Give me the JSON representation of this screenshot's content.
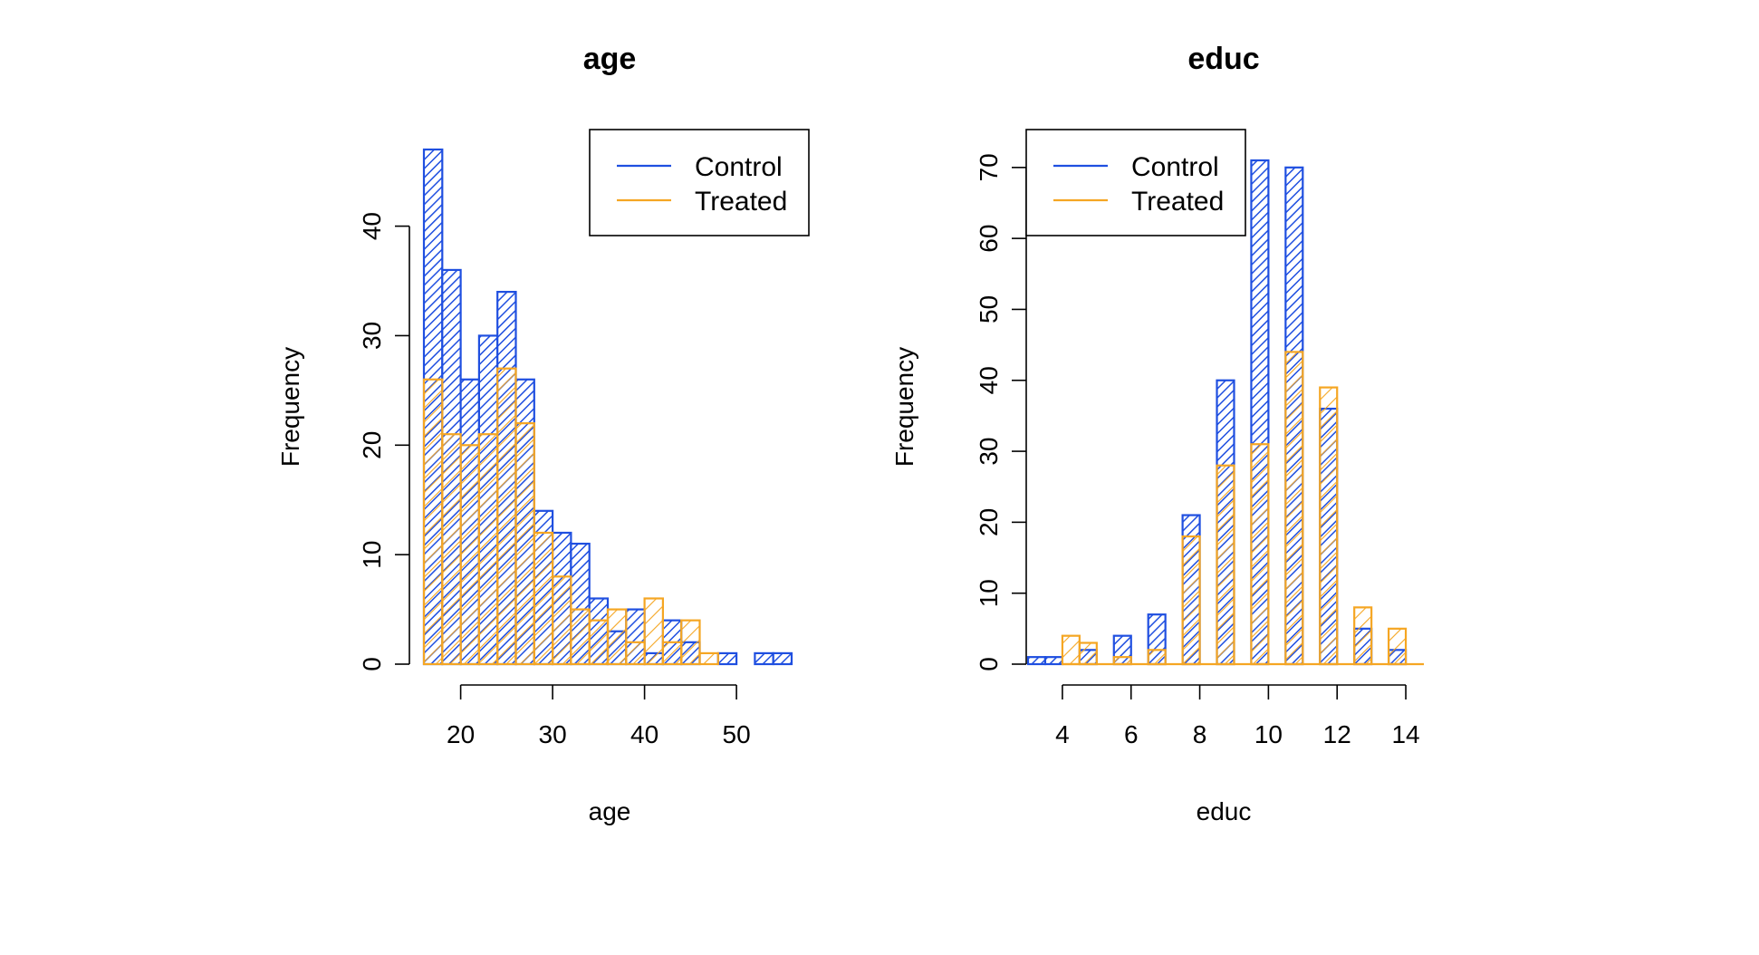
{
  "colors": {
    "control": "#1f4fe0",
    "treated": "#f5a623"
  },
  "chart_data": [
    {
      "type": "bar",
      "title": "age",
      "xlabel": "age",
      "ylabel": "Frequency",
      "xlim": [
        16,
        56
      ],
      "ylim": [
        0,
        47
      ],
      "bin_width": 2,
      "x_ticks": [
        20,
        30,
        40,
        50
      ],
      "y_ticks": [
        0,
        10,
        20,
        30,
        40
      ],
      "legend": {
        "position": "top-right",
        "entries": [
          "Control",
          "Treated"
        ]
      },
      "series": [
        {
          "name": "Control",
          "bins": [
            [
              16,
              47
            ],
            [
              18,
              36
            ],
            [
              20,
              26
            ],
            [
              22,
              30
            ],
            [
              24,
              34
            ],
            [
              26,
              26
            ],
            [
              28,
              14
            ],
            [
              30,
              12
            ],
            [
              32,
              11
            ],
            [
              34,
              6
            ],
            [
              36,
              3
            ],
            [
              38,
              5
            ],
            [
              40,
              1
            ],
            [
              42,
              4
            ],
            [
              44,
              2
            ],
            [
              48,
              1
            ],
            [
              52,
              1
            ],
            [
              54,
              1
            ]
          ]
        },
        {
          "name": "Treated",
          "bins": [
            [
              16,
              26
            ],
            [
              18,
              21
            ],
            [
              20,
              20
            ],
            [
              22,
              21
            ],
            [
              24,
              27
            ],
            [
              26,
              22
            ],
            [
              28,
              12
            ],
            [
              30,
              8
            ],
            [
              32,
              5
            ],
            [
              34,
              4
            ],
            [
              36,
              5
            ],
            [
              38,
              2
            ],
            [
              40,
              6
            ],
            [
              42,
              2
            ],
            [
              44,
              4
            ],
            [
              46,
              1
            ]
          ]
        }
      ]
    },
    {
      "type": "bar",
      "title": "educ",
      "xlabel": "educ",
      "ylabel": "Frequency",
      "xlim": [
        3,
        14.5
      ],
      "ylim": [
        0,
        71
      ],
      "bin_width": 0.5,
      "x_ticks": [
        4,
        6,
        8,
        10,
        12,
        14
      ],
      "y_ticks": [
        0,
        10,
        20,
        30,
        40,
        50,
        60,
        70
      ],
      "legend": {
        "position": "top-left",
        "entries": [
          "Control",
          "Treated"
        ]
      },
      "series": [
        {
          "name": "Control",
          "bins": [
            [
              3,
              1
            ],
            [
              3.5,
              1
            ],
            [
              4.5,
              2
            ],
            [
              5.5,
              4
            ],
            [
              6.5,
              7
            ],
            [
              7.5,
              21
            ],
            [
              8.5,
              40
            ],
            [
              9.5,
              71
            ],
            [
              10.5,
              70
            ],
            [
              11.5,
              36
            ],
            [
              12.5,
              5
            ],
            [
              13.5,
              2
            ]
          ]
        },
        {
          "name": "Treated",
          "bins": [
            [
              4,
              4
            ],
            [
              4.5,
              3
            ],
            [
              5.5,
              1
            ],
            [
              6.5,
              2
            ],
            [
              7.5,
              18
            ],
            [
              8.5,
              28
            ],
            [
              9.5,
              31
            ],
            [
              10.5,
              44
            ],
            [
              11.5,
              39
            ],
            [
              12.5,
              8
            ],
            [
              13.5,
              5
            ]
          ]
        }
      ]
    }
  ]
}
